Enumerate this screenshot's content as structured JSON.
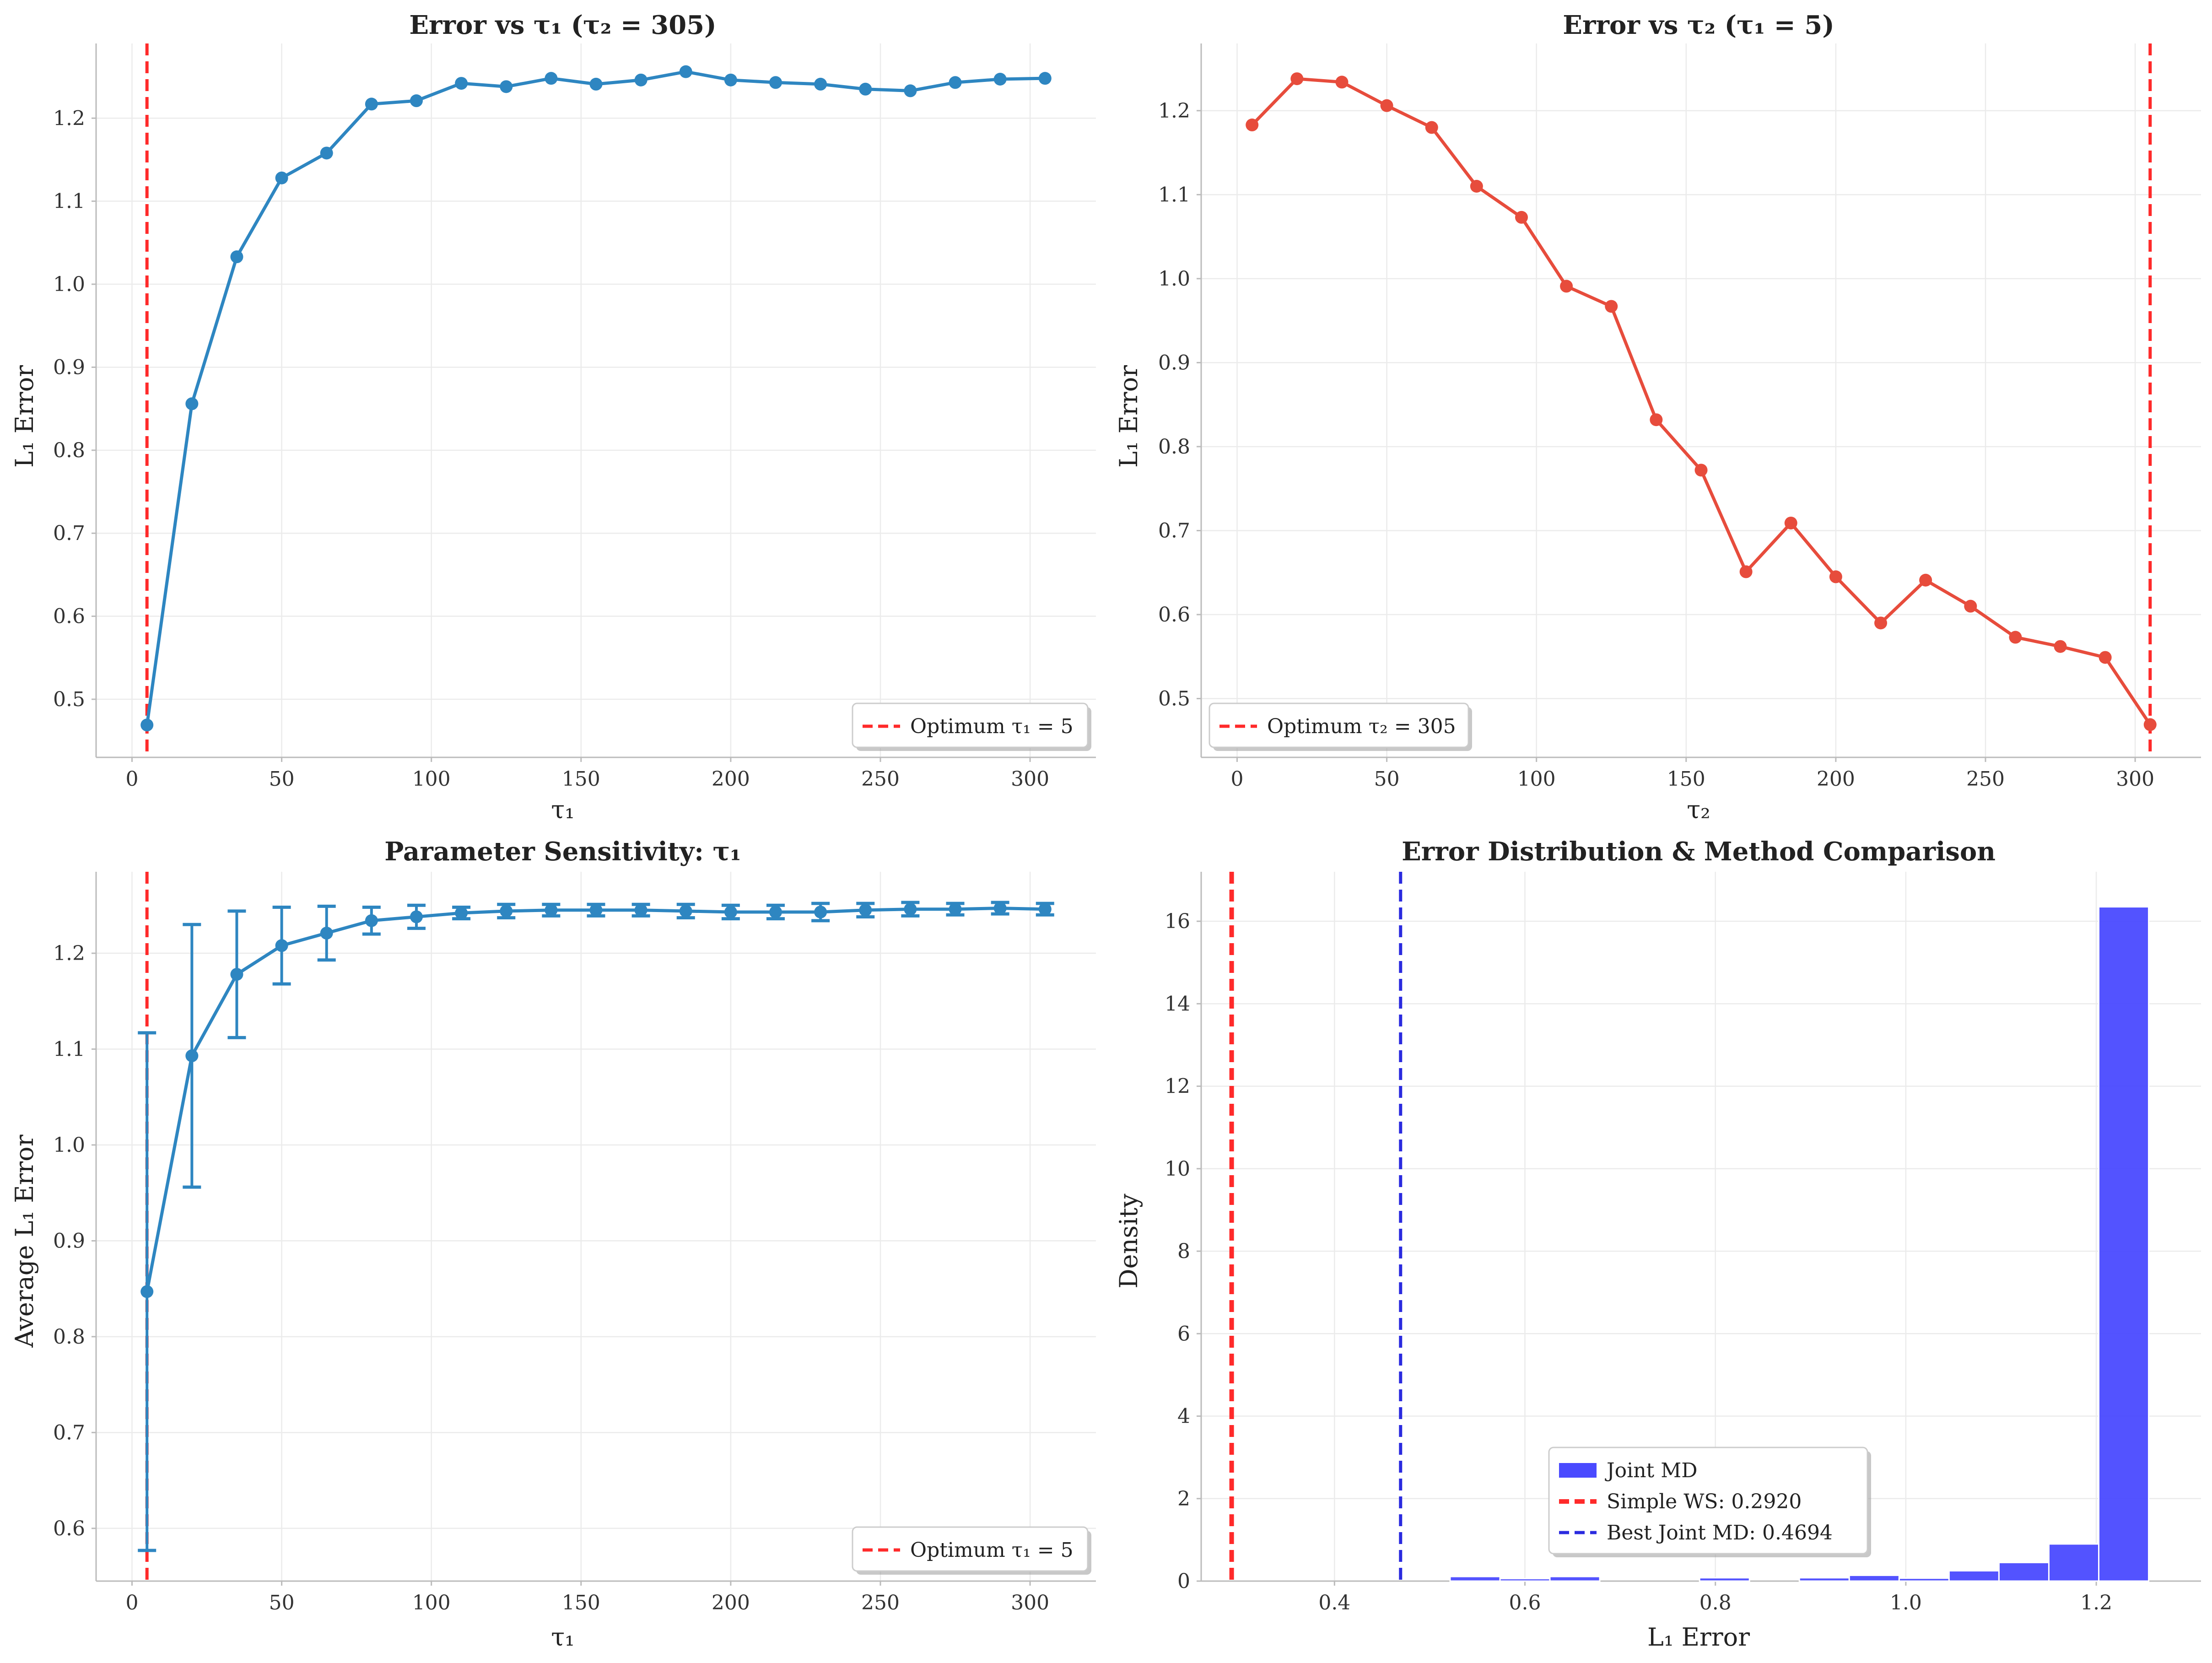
{
  "colors": {
    "blue_line": "#2e86c1",
    "red_line": "#e74c3c",
    "optimum_red": "#ff2a2a",
    "hist_blue": "#4a4aff",
    "best_joint_blue": "#2b2bdf",
    "grid": "#ebebeb",
    "axis": "#bbbbbb"
  },
  "chart_data": [
    {
      "type": "line",
      "title": "Error vs τ₁ (τ₂ = 305)",
      "xlabel": "τ₁",
      "ylabel": "L₁ Error",
      "xlim": [
        -12,
        322
      ],
      "ylim": [
        0.43,
        1.29
      ],
      "xticks": [
        0,
        50,
        100,
        150,
        200,
        250,
        300
      ],
      "yticks": [
        0.5,
        0.6,
        0.7,
        0.8,
        0.9,
        1.0,
        1.1,
        1.2
      ],
      "ytick_labels": [
        "0.5",
        "0.6",
        "0.7",
        "0.8",
        "0.9",
        "1.0",
        "1.1",
        "1.2"
      ],
      "grid": true,
      "legend_position": "lower-right",
      "series": [
        {
          "color": "#2e86c1",
          "x": [
            5,
            20,
            35,
            50,
            65,
            80,
            95,
            110,
            125,
            140,
            155,
            170,
            185,
            200,
            215,
            230,
            245,
            260,
            275,
            290,
            305
          ],
          "y": [
            0.469,
            0.856,
            1.033,
            1.128,
            1.158,
            1.217,
            1.221,
            1.242,
            1.238,
            1.248,
            1.241,
            1.246,
            1.256,
            1.246,
            1.243,
            1.241,
            1.235,
            1.233,
            1.243,
            1.247,
            1.248
          ]
        }
      ],
      "vlines": [
        {
          "x": 5,
          "color": "#ff2a2a",
          "label": "Optimum τ₁ = 5"
        }
      ]
    },
    {
      "type": "line",
      "title": "Error vs τ₂ (τ₁ = 5)",
      "xlabel": "τ₂",
      "ylabel": "L₁ Error",
      "xlim": [
        -12,
        322
      ],
      "ylim": [
        0.43,
        1.28
      ],
      "xticks": [
        0,
        50,
        100,
        150,
        200,
        250,
        300
      ],
      "yticks": [
        0.5,
        0.6,
        0.7,
        0.8,
        0.9,
        1.0,
        1.1,
        1.2
      ],
      "ytick_labels": [
        "0.5",
        "0.6",
        "0.7",
        "0.8",
        "0.9",
        "1.0",
        "1.1",
        "1.2"
      ],
      "grid": true,
      "legend_position": "lower-left",
      "series": [
        {
          "color": "#e74c3c",
          "x": [
            5,
            20,
            35,
            50,
            65,
            80,
            95,
            110,
            125,
            140,
            155,
            170,
            185,
            200,
            215,
            230,
            245,
            260,
            275,
            290,
            305
          ],
          "y": [
            1.183,
            1.238,
            1.234,
            1.206,
            1.18,
            1.11,
            1.073,
            0.991,
            0.967,
            0.832,
            0.772,
            0.651,
            0.709,
            0.645,
            0.59,
            0.641,
            0.61,
            0.573,
            0.562,
            0.549,
            0.469
          ]
        }
      ],
      "vlines": [
        {
          "x": 305,
          "color": "#ff2a2a",
          "label": "Optimum τ₂ = 305"
        }
      ]
    },
    {
      "type": "line",
      "title": "Parameter Sensitivity: τ₁",
      "xlabel": "τ₁",
      "ylabel": "Average L₁ Error",
      "xlim": [
        -12,
        322
      ],
      "ylim": [
        0.545,
        1.285
      ],
      "xticks": [
        0,
        50,
        100,
        150,
        200,
        250,
        300
      ],
      "yticks": [
        0.6,
        0.7,
        0.8,
        0.9,
        1.0,
        1.1,
        1.2
      ],
      "ytick_labels": [
        "0.6",
        "0.7",
        "0.8",
        "0.9",
        "1.0",
        "1.1",
        "1.2"
      ],
      "grid": true,
      "legend_position": "lower-right",
      "series": [
        {
          "color": "#2e86c1",
          "x": [
            5,
            20,
            35,
            50,
            65,
            80,
            95,
            110,
            125,
            140,
            155,
            170,
            185,
            200,
            215,
            230,
            245,
            260,
            275,
            290,
            305
          ],
          "y": [
            0.847,
            1.093,
            1.178,
            1.208,
            1.221,
            1.234,
            1.238,
            1.242,
            1.244,
            1.245,
            1.245,
            1.245,
            1.244,
            1.243,
            1.243,
            1.243,
            1.245,
            1.246,
            1.246,
            1.247,
            1.246
          ],
          "err": [
            0.27,
            0.137,
            0.066,
            0.04,
            0.028,
            0.014,
            0.012,
            0.006,
            0.007,
            0.006,
            0.006,
            0.006,
            0.007,
            0.007,
            0.007,
            0.009,
            0.007,
            0.007,
            0.006,
            0.006,
            0.006
          ]
        }
      ],
      "vlines": [
        {
          "x": 5,
          "color": "#ff2a2a",
          "label": "Optimum τ₁ = 5"
        }
      ]
    },
    {
      "type": "histogram",
      "title": "Error Distribution & Method Comparison",
      "xlabel": "L₁ Error",
      "ylabel": "Density",
      "xlim": [
        0.26,
        1.31
      ],
      "ylim": [
        0,
        17.2
      ],
      "xticks": [
        0.4,
        0.6,
        0.8,
        1.0,
        1.2
      ],
      "xtick_labels": [
        "0.4",
        "0.6",
        "0.8",
        "1.0",
        "1.2"
      ],
      "yticks": [
        0,
        2,
        4,
        6,
        8,
        10,
        12,
        14,
        16
      ],
      "ytick_labels": [
        "0",
        "2",
        "4",
        "6",
        "8",
        "10",
        "12",
        "14",
        "16"
      ],
      "grid": true,
      "legend_position": "lower-center",
      "bins": {
        "edges": [
          0.469,
          0.5214,
          0.5738,
          0.6262,
          0.6786,
          0.731,
          0.7834,
          0.8358,
          0.8882,
          0.9406,
          0.993,
          1.0454,
          1.0978,
          1.1502,
          1.2026,
          1.255
        ],
        "density": [
          0.0,
          0.11,
          0.06,
          0.11,
          0.0,
          0.0,
          0.08,
          0.0,
          0.08,
          0.14,
          0.07,
          0.25,
          0.45,
          0.9,
          16.35
        ],
        "color": "#4a4aff",
        "label": "Joint MD"
      },
      "vlines": [
        {
          "x": 0.292,
          "color": "#ff2a2a",
          "label": "Simple WS: 0.2920"
        },
        {
          "x": 0.4694,
          "color": "#2b2bdf",
          "label": "Best Joint MD: 0.4694"
        }
      ]
    }
  ]
}
